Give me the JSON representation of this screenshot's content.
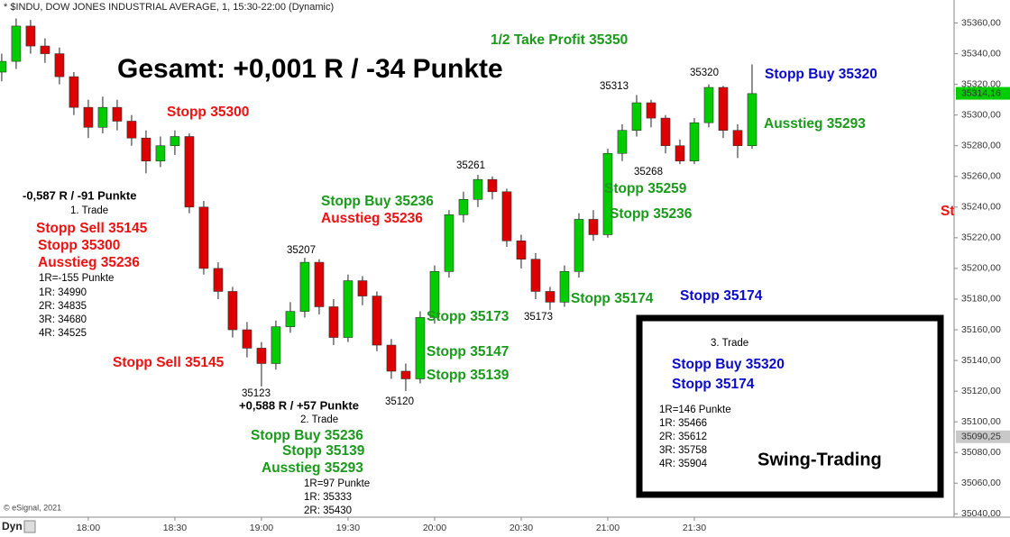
{
  "chart_data": {
    "type": "candlestick",
    "title": "* $INDU, DOW JONES INDUSTRIAL AVERAGE, 1, 15:30-22:00 (Dynamic)",
    "copyright": "© eSignal, 2021",
    "mode_label": "Dyn",
    "up_color": "#00cc00",
    "down_color": "#dd0000",
    "x": [
      1050,
      1055,
      1060,
      1065,
      1070,
      1075,
      1080,
      1085,
      1090,
      1095,
      1100,
      1105,
      1110,
      1115,
      1120,
      1125,
      1130,
      1135,
      1140,
      1145,
      1150,
      1155,
      1160,
      1165,
      1170,
      1175,
      1180,
      1185,
      1190,
      1195,
      1200,
      1205,
      1210,
      1215,
      1220,
      1225,
      1230,
      1235,
      1240,
      1245,
      1250,
      1255,
      1260,
      1265,
      1270,
      1275,
      1280,
      1285,
      1290,
      1295,
      1300,
      1305,
      1310
    ],
    "open": [
      35328,
      35335,
      35358,
      35345,
      35340,
      35325,
      35305,
      35292,
      35305,
      35296,
      35285,
      35270,
      35280,
      35286,
      35240,
      35200,
      35185,
      35160,
      35148,
      35138,
      35162,
      35172,
      35204,
      35175,
      35155,
      35192,
      35182,
      35150,
      35133,
      35128,
      35168,
      35198,
      35235,
      35245,
      35258,
      35250,
      35218,
      35206,
      35185,
      35178,
      35198,
      35232,
      35222,
      35275,
      35290,
      35308,
      35298,
      35280,
      35270,
      35295,
      35318,
      35290,
      35280
    ],
    "high": [
      35340,
      35363,
      35362,
      35350,
      35344,
      35328,
      35310,
      35312,
      35310,
      35300,
      35290,
      35286,
      35290,
      35288,
      35244,
      35204,
      35188,
      35165,
      35152,
      35166,
      35178,
      35207,
      35206,
      35180,
      35196,
      35195,
      35185,
      35154,
      35138,
      35172,
      35202,
      35238,
      35250,
      35261,
      35260,
      35252,
      35222,
      35210,
      35188,
      35202,
      35236,
      35238,
      35278,
      35294,
      35313,
      35310,
      35300,
      35284,
      35298,
      35320,
      35319,
      35294,
      35333
    ],
    "low": [
      35322,
      35330,
      35340,
      35334,
      35320,
      35300,
      35285,
      35288,
      35290,
      35280,
      35262,
      35266,
      35274,
      35236,
      35196,
      35180,
      35155,
      35142,
      35123,
      35134,
      35158,
      35168,
      35170,
      35150,
      35152,
      35176,
      35146,
      35128,
      35120,
      35125,
      35164,
      35194,
      35230,
      35240,
      35245,
      35214,
      35200,
      35180,
      35173,
      35175,
      35194,
      35218,
      35220,
      35270,
      35286,
      35292,
      35275,
      35268,
      35268,
      35292,
      35285,
      35272,
      35278
    ],
    "close": [
      35335,
      35358,
      35345,
      35340,
      35325,
      35305,
      35292,
      35305,
      35296,
      35285,
      35270,
      35280,
      35286,
      35240,
      35200,
      35185,
      35160,
      35148,
      35138,
      35162,
      35172,
      35204,
      35175,
      35155,
      35192,
      35182,
      35150,
      35133,
      35128,
      35168,
      35198,
      35235,
      35245,
      35258,
      35250,
      35218,
      35206,
      35185,
      35178,
      35198,
      35232,
      35222,
      35275,
      35290,
      35308,
      35298,
      35280,
      35270,
      35295,
      35318,
      35290,
      35280,
      35314
    ],
    "xlim": [
      1049.4,
      1380
    ],
    "xticks": [
      {
        "value": 1080,
        "label": "18:00"
      },
      {
        "value": 1110,
        "label": "18:30"
      },
      {
        "value": 1140,
        "label": "19:00"
      },
      {
        "value": 1170,
        "label": "19:30"
      },
      {
        "value": 1200,
        "label": "20:00"
      },
      {
        "value": 1230,
        "label": "20:30"
      },
      {
        "value": 1260,
        "label": "21:00"
      },
      {
        "value": 1290,
        "label": "21:30"
      }
    ],
    "ylim": [
      35039,
      35375
    ],
    "yticks": [
      {
        "value": 35040,
        "label": "35040,00"
      },
      {
        "value": 35060,
        "label": "35060,00"
      },
      {
        "value": 35080,
        "label": "35080,00"
      },
      {
        "value": 35100,
        "label": "35100,00"
      },
      {
        "value": 35120,
        "label": "35120,00"
      },
      {
        "value": 35140,
        "label": "35140,00"
      },
      {
        "value": 35160,
        "label": "35160,00"
      },
      {
        "value": 35180,
        "label": "35180,00"
      },
      {
        "value": 35200,
        "label": "35200,00"
      },
      {
        "value": 35220,
        "label": "35220,00"
      },
      {
        "value": 35240,
        "label": "35240,00"
      },
      {
        "value": 35260,
        "label": "35260,00"
      },
      {
        "value": 35280,
        "label": "35280,00"
      },
      {
        "value": 35300,
        "label": "35300,00"
      },
      {
        "value": 35320,
        "label": "35320,00"
      },
      {
        "value": 35340,
        "label": "35340,00"
      },
      {
        "value": 35360,
        "label": "35360,00"
      }
    ],
    "price_labels": [
      {
        "value": 35314.16,
        "label": "35314,16",
        "color": "#00cc00"
      },
      {
        "value": 35090.25,
        "label": "35090,25",
        "color": "#c8c8c8"
      }
    ],
    "annotations": [
      {
        "text": "Gesamt: +0,001 R / -34 Punkte",
        "color": "#000000",
        "style": "huge"
      },
      {
        "text": "1/2 Take Profit 35350",
        "color": "#1a9a1a",
        "style": "bold"
      },
      {
        "text": "Stopp 35300",
        "color": "#ee1111",
        "style": "bold"
      },
      {
        "text": "-0,587 R / -91 Punkte",
        "color": "#000000",
        "style": "mid"
      },
      {
        "text": "1. Trade",
        "color": "#000000",
        "style": "small"
      },
      {
        "text": "Stopp Sell 35145",
        "color": "#ee1111",
        "style": "bold"
      },
      {
        "text": "Stopp 35300",
        "color": "#ee1111",
        "style": "bold"
      },
      {
        "text": "Ausstieg 35236",
        "color": "#ee1111",
        "style": "bold"
      },
      {
        "text": "1R=-155 Punkte",
        "color": "#000000",
        "style": "small"
      },
      {
        "text": "1R: 34990",
        "color": "#000000",
        "style": "small"
      },
      {
        "text": "2R: 34835",
        "color": "#000000",
        "style": "small"
      },
      {
        "text": "3R: 34680",
        "color": "#000000",
        "style": "small"
      },
      {
        "text": "4R: 34525",
        "color": "#000000",
        "style": "small"
      },
      {
        "text": "Stopp Sell 35145",
        "color": "#ee1111",
        "style": "bold"
      },
      {
        "text": "35123",
        "color": "#000000",
        "style": "small"
      },
      {
        "text": "+0,588 R / +57 Punkte",
        "color": "#000000",
        "style": "mid"
      },
      {
        "text": "2. Trade",
        "color": "#000000",
        "style": "small"
      },
      {
        "text": "Stopp Buy 35236",
        "color": "#1a9a1a",
        "style": "bold"
      },
      {
        "text": "Stopp 35139",
        "color": "#1a9a1a",
        "style": "bold"
      },
      {
        "text": "Ausstieg 35293",
        "color": "#1a9a1a",
        "style": "bold"
      },
      {
        "text": "1R=97 Punkte",
        "color": "#000000",
        "style": "small"
      },
      {
        "text": "1R: 35333",
        "color": "#000000",
        "style": "small"
      },
      {
        "text": "2R: 35430",
        "color": "#000000",
        "style": "small"
      },
      {
        "text": "35207",
        "color": "#000000",
        "style": "small"
      },
      {
        "text": "35120",
        "color": "#000000",
        "style": "small"
      },
      {
        "text": "Stopp Buy 35236",
        "color": "#1a9a1a",
        "style": "bold"
      },
      {
        "text": "Ausstieg 35236",
        "color": "#ee1111",
        "style": "bold"
      },
      {
        "text": "35261",
        "color": "#000000",
        "style": "small"
      },
      {
        "text": "Stopp 35173",
        "color": "#1a9a1a",
        "style": "bold"
      },
      {
        "text": "35173",
        "color": "#000000",
        "style": "small"
      },
      {
        "text": "Stopp 35147",
        "color": "#1a9a1a",
        "style": "bold"
      },
      {
        "text": "Stopp 35139",
        "color": "#1a9a1a",
        "style": "bold"
      },
      {
        "text": "35313",
        "color": "#000000",
        "style": "small"
      },
      {
        "text": "35320",
        "color": "#000000",
        "style": "small"
      },
      {
        "text": "35268",
        "color": "#000000",
        "style": "small"
      },
      {
        "text": "Stopp 35259",
        "color": "#1a9a1a",
        "style": "bold"
      },
      {
        "text": "Stopp 35236",
        "color": "#1a9a1a",
        "style": "bold"
      },
      {
        "text": "Stopp 35174",
        "color": "#1a9a1a",
        "style": "bold"
      },
      {
        "text": "Stopp 35174",
        "color": "#0a0acc",
        "style": "bold"
      },
      {
        "text": "Stopp Buy 35320",
        "color": "#0a0acc",
        "style": "bold"
      },
      {
        "text": "Ausstieg 35293",
        "color": "#1a9a1a",
        "style": "bold"
      },
      {
        "text": "Sto",
        "color": "#ee1111",
        "style": "bold"
      },
      {
        "text": "3. Trade",
        "color": "#000000",
        "style": "small"
      },
      {
        "text": "Stopp Buy 35320",
        "color": "#0a0acc",
        "style": "bold"
      },
      {
        "text": "Stopp 35174",
        "color": "#0a0acc",
        "style": "bold"
      },
      {
        "text": "1R=146 Punkte",
        "color": "#000000",
        "style": "small"
      },
      {
        "text": "1R: 35466",
        "color": "#000000",
        "style": "small"
      },
      {
        "text": "2R: 35612",
        "color": "#000000",
        "style": "small"
      },
      {
        "text": "3R: 35758",
        "color": "#000000",
        "style": "small"
      },
      {
        "text": "4R: 35904",
        "color": "#000000",
        "style": "small"
      },
      {
        "text": "Swing-Trading",
        "color": "#000000",
        "style": "large"
      }
    ]
  }
}
